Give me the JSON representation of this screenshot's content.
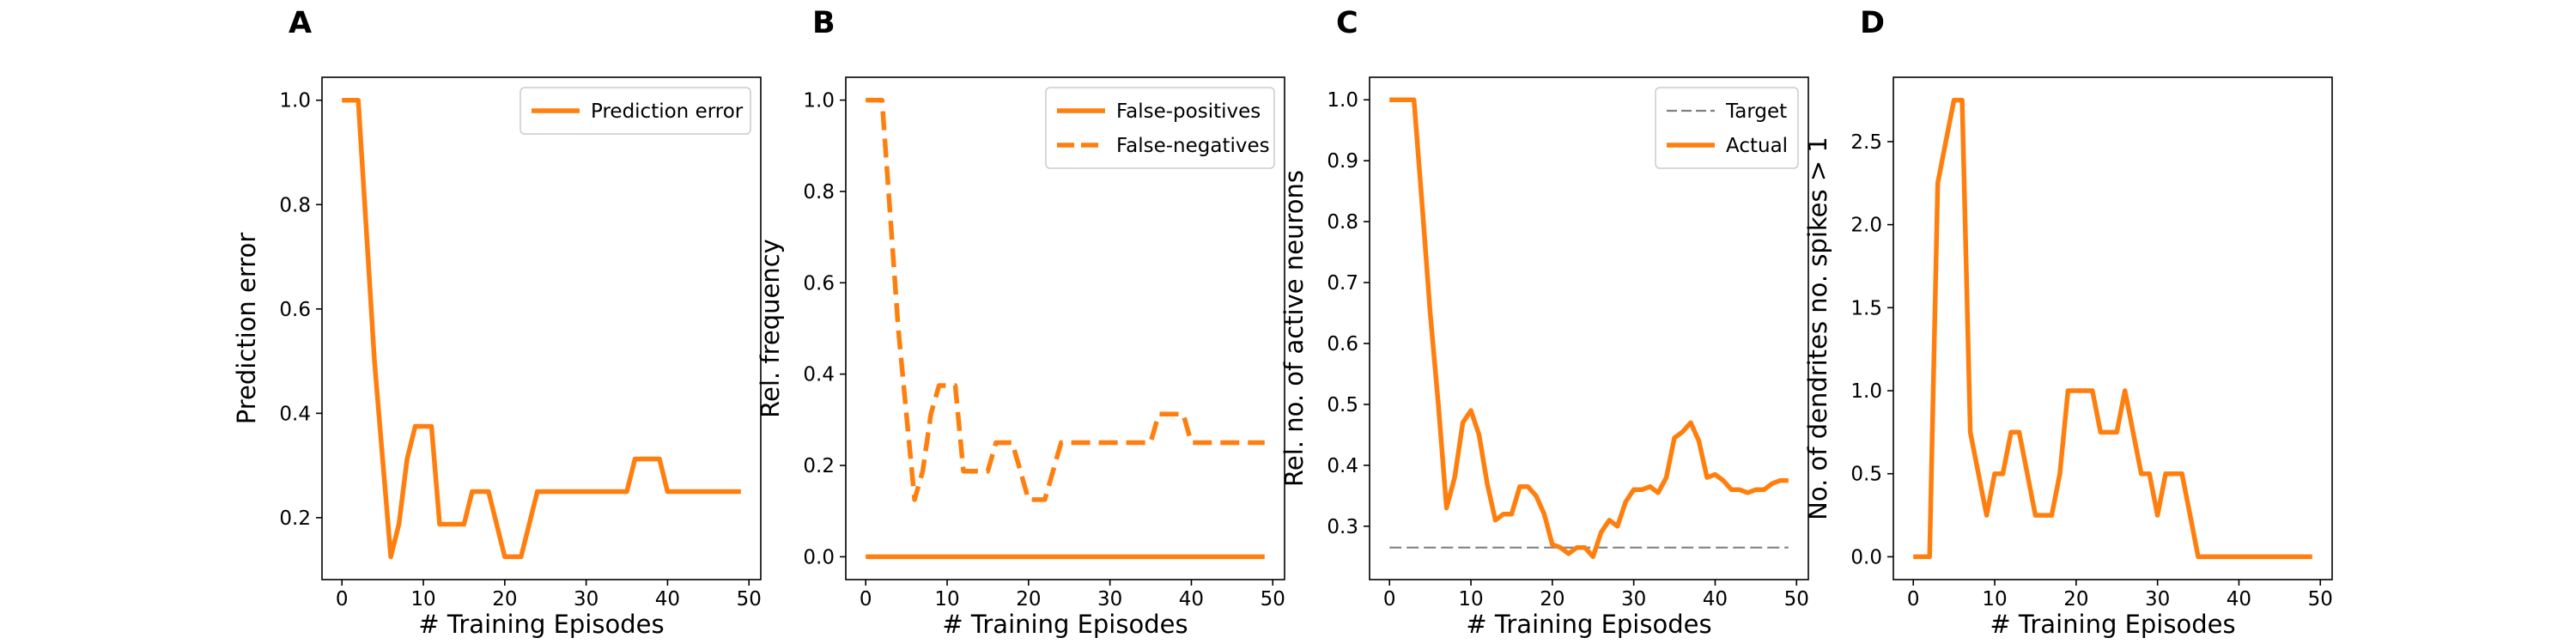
{
  "figure": {
    "colors": {
      "orange": "#ff7f0e",
      "gray": "#808080",
      "axis": "#000000"
    }
  },
  "chart_data": [
    {
      "panel": "A",
      "type": "line",
      "xlabel": "# Training Episodes",
      "ylabel": "Prediction error",
      "xlim": [
        -2.45,
        51.45
      ],
      "ylim": [
        0.0813,
        1.044
      ],
      "xticks": [
        0,
        10,
        20,
        30,
        40,
        50
      ],
      "xticklabels": [
        "0",
        "10",
        "20",
        "30",
        "40",
        "50"
      ],
      "yticks": [
        0.2,
        0.4,
        0.6,
        0.8,
        1.0
      ],
      "yticklabels": [
        "0.2",
        "0.4",
        "0.6",
        "0.8",
        "1.0"
      ],
      "grid": false,
      "legend": "upper right",
      "series": [
        {
          "name": "Prediction error",
          "color": "#ff7f0e",
          "style": "solid",
          "x": [
            0,
            1,
            2,
            3,
            4,
            5,
            6,
            7,
            8,
            9,
            10,
            11,
            12,
            13,
            14,
            15,
            16,
            17,
            18,
            19,
            20,
            21,
            22,
            23,
            24,
            25,
            26,
            27,
            28,
            29,
            30,
            31,
            32,
            33,
            34,
            35,
            36,
            37,
            38,
            39,
            40,
            41,
            42,
            43,
            44,
            45,
            46,
            47,
            48,
            49
          ],
          "y": [
            1.0,
            1.0,
            1.0,
            0.75,
            0.5,
            0.3125,
            0.125,
            0.1875,
            0.3125,
            0.375,
            0.375,
            0.375,
            0.1875,
            0.1875,
            0.1875,
            0.1875,
            0.25,
            0.25,
            0.25,
            0.1875,
            0.125,
            0.125,
            0.125,
            0.1875,
            0.25,
            0.25,
            0.25,
            0.25,
            0.25,
            0.25,
            0.25,
            0.25,
            0.25,
            0.25,
            0.25,
            0.25,
            0.3125,
            0.3125,
            0.3125,
            0.3125,
            0.25,
            0.25,
            0.25,
            0.25,
            0.25,
            0.25,
            0.25,
            0.25,
            0.25,
            0.25
          ]
        }
      ]
    },
    {
      "panel": "B",
      "type": "line",
      "xlabel": "# Training Episodes",
      "ylabel": "Rel. frequency",
      "xlim": [
        -2.45,
        51.45
      ],
      "ylim": [
        -0.05,
        1.05
      ],
      "xticks": [
        0,
        10,
        20,
        30,
        40,
        50
      ],
      "xticklabels": [
        "0",
        "10",
        "20",
        "30",
        "40",
        "50"
      ],
      "yticks": [
        0.0,
        0.2,
        0.4,
        0.6,
        0.8,
        1.0
      ],
      "yticklabels": [
        "0.0",
        "0.2",
        "0.4",
        "0.6",
        "0.8",
        "1.0"
      ],
      "grid": false,
      "legend": "upper right",
      "series": [
        {
          "name": "False-positives",
          "color": "#ff7f0e",
          "style": "solid",
          "x": [
            0,
            1,
            2,
            3,
            4,
            5,
            6,
            7,
            8,
            9,
            10,
            11,
            12,
            13,
            14,
            15,
            16,
            17,
            18,
            19,
            20,
            21,
            22,
            23,
            24,
            25,
            26,
            27,
            28,
            29,
            30,
            31,
            32,
            33,
            34,
            35,
            36,
            37,
            38,
            39,
            40,
            41,
            42,
            43,
            44,
            45,
            46,
            47,
            48,
            49
          ],
          "y": [
            0,
            0,
            0,
            0,
            0,
            0,
            0,
            0,
            0,
            0,
            0,
            0,
            0,
            0,
            0,
            0,
            0,
            0,
            0,
            0,
            0,
            0,
            0,
            0,
            0,
            0,
            0,
            0,
            0,
            0,
            0,
            0,
            0,
            0,
            0,
            0,
            0,
            0,
            0,
            0,
            0,
            0,
            0,
            0,
            0,
            0,
            0,
            0,
            0,
            0
          ]
        },
        {
          "name": "False-negatives",
          "color": "#ff7f0e",
          "style": "dashed",
          "x": [
            0,
            1,
            2,
            3,
            4,
            5,
            6,
            7,
            8,
            9,
            10,
            11,
            12,
            13,
            14,
            15,
            16,
            17,
            18,
            19,
            20,
            21,
            22,
            23,
            24,
            25,
            26,
            27,
            28,
            29,
            30,
            31,
            32,
            33,
            34,
            35,
            36,
            37,
            38,
            39,
            40,
            41,
            42,
            43,
            44,
            45,
            46,
            47,
            48,
            49
          ],
          "y": [
            1.0,
            1.0,
            1.0,
            0.75,
            0.5,
            0.3125,
            0.125,
            0.1875,
            0.3125,
            0.375,
            0.375,
            0.375,
            0.1875,
            0.1875,
            0.1875,
            0.1875,
            0.25,
            0.25,
            0.25,
            0.1875,
            0.125,
            0.125,
            0.125,
            0.1875,
            0.25,
            0.25,
            0.25,
            0.25,
            0.25,
            0.25,
            0.25,
            0.25,
            0.25,
            0.25,
            0.25,
            0.25,
            0.3125,
            0.3125,
            0.3125,
            0.3125,
            0.25,
            0.25,
            0.25,
            0.25,
            0.25,
            0.25,
            0.25,
            0.25,
            0.25,
            0.25
          ]
        }
      ]
    },
    {
      "panel": "C",
      "type": "line",
      "xlabel": "# Training Episodes",
      "ylabel": "Rel. no. of active neurons",
      "xlim": [
        -2.45,
        51.45
      ],
      "ylim": [
        0.2124,
        1.037
      ],
      "xticks": [
        0,
        10,
        20,
        30,
        40,
        50
      ],
      "xticklabels": [
        "0",
        "10",
        "20",
        "30",
        "40",
        "50"
      ],
      "yticks": [
        0.3,
        0.4,
        0.5,
        0.6,
        0.7,
        0.8,
        0.9,
        1.0
      ],
      "yticklabels": [
        "0.3",
        "0.4",
        "0.5",
        "0.6",
        "0.7",
        "0.8",
        "0.9",
        "1.0"
      ],
      "grid": false,
      "legend": "upper right",
      "series": [
        {
          "name": "Target",
          "color": "#808080",
          "style": "dashed",
          "x": [
            0,
            49
          ],
          "y": [
            0.265,
            0.265
          ]
        },
        {
          "name": "Actual",
          "color": "#ff7f0e",
          "style": "solid",
          "x": [
            0,
            1,
            2,
            3,
            4,
            5,
            6,
            7,
            8,
            9,
            10,
            11,
            12,
            13,
            14,
            15,
            16,
            17,
            18,
            19,
            20,
            21,
            22,
            23,
            24,
            25,
            26,
            27,
            28,
            29,
            30,
            31,
            32,
            33,
            34,
            35,
            36,
            37,
            38,
            39,
            40,
            41,
            42,
            43,
            44,
            45,
            46,
            47,
            48,
            49
          ],
          "y": [
            1.0,
            1.0,
            1.0,
            1.0,
            0.83,
            0.65,
            0.5,
            0.33,
            0.38,
            0.47,
            0.49,
            0.45,
            0.37,
            0.31,
            0.32,
            0.32,
            0.365,
            0.365,
            0.35,
            0.32,
            0.27,
            0.265,
            0.255,
            0.265,
            0.265,
            0.25,
            0.29,
            0.31,
            0.3,
            0.34,
            0.36,
            0.36,
            0.365,
            0.355,
            0.38,
            0.445,
            0.455,
            0.47,
            0.44,
            0.38,
            0.385,
            0.375,
            0.36,
            0.36,
            0.355,
            0.36,
            0.36,
            0.37,
            0.375,
            0.375
          ]
        }
      ]
    },
    {
      "panel": "D",
      "type": "line",
      "xlabel": "# Training Episodes",
      "ylabel": "No. of dendrites no. spikes > 1",
      "xlim": [
        -2.45,
        51.45
      ],
      "ylim": [
        -0.1375,
        2.8875
      ],
      "xticks": [
        0,
        10,
        20,
        30,
        40,
        50
      ],
      "xticklabels": [
        "0",
        "10",
        "20",
        "30",
        "40",
        "50"
      ],
      "yticks": [
        0.0,
        0.5,
        1.0,
        1.5,
        2.0,
        2.5
      ],
      "yticklabels": [
        "0.0",
        "0.5",
        "1.0",
        "1.5",
        "2.0",
        "2.5"
      ],
      "grid": false,
      "legend": "none",
      "series": [
        {
          "name": "",
          "color": "#ff7f0e",
          "style": "solid",
          "x": [
            0,
            1,
            2,
            3,
            4,
            5,
            6,
            7,
            8,
            9,
            10,
            11,
            12,
            13,
            14,
            15,
            16,
            17,
            18,
            19,
            20,
            21,
            22,
            23,
            24,
            25,
            26,
            27,
            28,
            29,
            30,
            31,
            32,
            33,
            34,
            35,
            36,
            37,
            38,
            39,
            40,
            41,
            42,
            43,
            44,
            45,
            46,
            47,
            48,
            49
          ],
          "y": [
            0,
            0,
            0,
            2.25,
            2.5,
            2.75,
            2.75,
            0.75,
            0.5,
            0.25,
            0.5,
            0.5,
            0.75,
            0.75,
            0.5,
            0.25,
            0.25,
            0.25,
            0.5,
            1.0,
            1.0,
            1.0,
            1.0,
            0.75,
            0.75,
            0.75,
            1.0,
            0.75,
            0.5,
            0.5,
            0.25,
            0.5,
            0.5,
            0.5,
            0.25,
            0,
            0,
            0,
            0,
            0,
            0,
            0,
            0,
            0,
            0,
            0,
            0,
            0,
            0,
            0
          ]
        }
      ]
    }
  ]
}
